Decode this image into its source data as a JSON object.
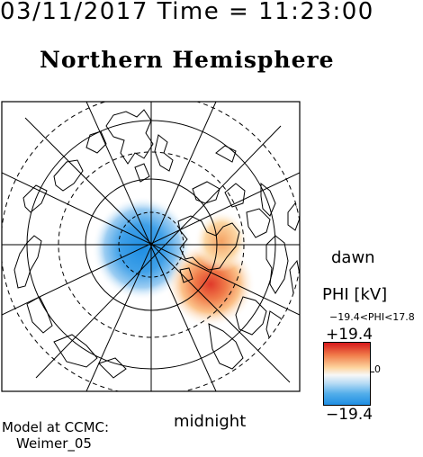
{
  "header": {
    "timestamp": "03/11/2017 Time = 11:23:00",
    "title": "Northern Hemisphere"
  },
  "map": {
    "projection": "polar (north pole view)",
    "local_time_labels": {
      "dawn": "dawn",
      "midnight": "midnight"
    },
    "potential_field": {
      "negative_cell": "dusk side, centered near pole",
      "positive_cell": "dawn side, lower latitudes"
    }
  },
  "colorbar": {
    "title": "PHI [kV]",
    "range_text": "−19.4<PHI<17.8",
    "max_label": "+19.4",
    "min_label": "−19.4",
    "zero_label": "0",
    "colors": {
      "positive": "#d7191c",
      "zero": "#f7f7f7",
      "negative": "#1f8ee3"
    }
  },
  "credit": {
    "line1": "Model at CCMC:",
    "line2": "Weimer_05"
  }
}
